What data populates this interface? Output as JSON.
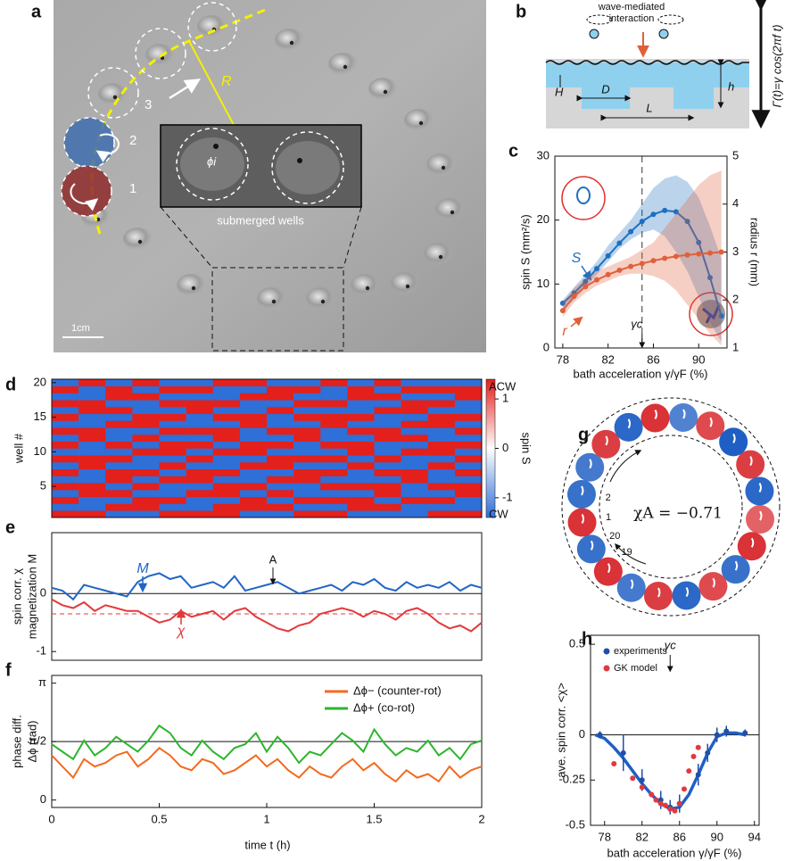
{
  "photo": {
    "label": "a",
    "markers": [
      "1",
      "2",
      "3"
    ],
    "radius": "R",
    "angle": "ϕi",
    "wells": "submerged wells",
    "scale": "1cm"
  },
  "diagram": {
    "label": "b",
    "interaction": [
      "wave-mediated",
      "interaction"
    ],
    "H": "H",
    "D": "D",
    "L": "L",
    "h": "h",
    "forcing": "Γ(t)=γ cos(2πf t)"
  },
  "ring": {
    "label": "g",
    "chi": "χA = −0.71",
    "well_labels": [
      "1",
      "2",
      "20",
      "19"
    ],
    "colors": [
      "#d7262b",
      "#1f5fc4"
    ],
    "spins": [
      0.9,
      -0.8,
      -0.7,
      0.8,
      -0.9,
      0.9,
      -0.6,
      0.7,
      -1,
      0.8,
      -0.9,
      0.5,
      0.9,
      -0.8,
      0.7,
      -0.9,
      0.8,
      -0.7,
      0.9,
      -0.8
    ]
  },
  "chart_data": [
    {
      "type": "line",
      "label": "c",
      "xlabel": "bath acceleration γ/γF (%)",
      "ylabel": "spin S (mm²/s)",
      "y2label": "radius r (mm)",
      "xlim": [
        77.3,
        92.5
      ],
      "xticks": [
        78,
        82,
        86,
        90
      ],
      "ylim": [
        0,
        30
      ],
      "yticks": [
        0,
        10,
        20,
        30
      ],
      "y2lim": [
        1,
        5
      ],
      "y2ticks": [
        1,
        2,
        3,
        4,
        5
      ],
      "gamma_c": {
        "label": "γc",
        "x": 85
      },
      "x": [
        78,
        79,
        80,
        81,
        82,
        83,
        84,
        85,
        86,
        87,
        88,
        89,
        90,
        91,
        92
      ],
      "series": [
        {
          "name": "S",
          "color": "#1f6fc0",
          "markers": true,
          "values": [
            7,
            8.6,
            10.4,
            12.4,
            14.4,
            16.4,
            18.2,
            19.8,
            20.9,
            21.5,
            21.3,
            19.8,
            16.5,
            11,
            5
          ],
          "band_lower": [
            6,
            7.5,
            9.5,
            11.5,
            13.5,
            15.5,
            17,
            18,
            18.5,
            17.5,
            15,
            12,
            8,
            4,
            1
          ],
          "band_upper": [
            7.5,
            9.5,
            11.5,
            13.5,
            16,
            18,
            20,
            22.5,
            25,
            26.5,
            27,
            26,
            23.5,
            19,
            14
          ]
        },
        {
          "name": "r",
          "color": "#e0603a",
          "axis": "y2",
          "markers": true,
          "values": [
            1.78,
            2.08,
            2.28,
            2.42,
            2.53,
            2.62,
            2.7,
            2.76,
            2.82,
            2.87,
            2.91,
            2.94,
            2.96,
            2.98,
            3.0
          ],
          "band_lower": [
            1.65,
            1.95,
            2.15,
            2.3,
            2.4,
            2.5,
            2.55,
            2.55,
            2.5,
            2.4,
            2.2,
            1.9,
            1.6,
            1.3,
            1.05
          ],
          "band_upper": [
            1.95,
            2.25,
            2.45,
            2.6,
            2.7,
            2.8,
            2.9,
            3.05,
            3.2,
            3.5,
            3.8,
            4.1,
            4.4,
            4.6,
            4.7
          ]
        }
      ]
    },
    {
      "type": "heatmap",
      "label": "d",
      "ylabel": "well #",
      "ylim": [
        0.5,
        20.5
      ],
      "yticks": [
        5,
        10,
        15,
        20
      ],
      "colors": [
        "#e3201b",
        "#2f6fd8"
      ],
      "colorbar": {
        "label": "spin S",
        "top": "ACW",
        "bottom": "CW",
        "lim": [
          -1.4,
          1.4
        ],
        "ticks": [
          1,
          0,
          -1
        ]
      },
      "values": [
        [
          1,
          1,
          -1,
          -1,
          1,
          1,
          1,
          -1,
          -1,
          1,
          1,
          -1,
          -1,
          -1,
          1,
          1
        ],
        [
          -1,
          -1,
          1,
          1,
          -1,
          -1,
          1,
          1,
          1,
          -1,
          -1,
          1,
          1,
          -1,
          -1,
          -1
        ],
        [
          1,
          -1,
          -1,
          1,
          1,
          -1,
          -1,
          1,
          -1,
          1,
          1,
          1,
          -1,
          1,
          1,
          -1
        ],
        [
          -1,
          1,
          1,
          -1,
          -1,
          1,
          1,
          -1,
          1,
          -1,
          -1,
          -1,
          1,
          -1,
          -1,
          1
        ],
        [
          1,
          1,
          -1,
          1,
          -1,
          -1,
          1,
          1,
          -1,
          -1,
          1,
          1,
          1,
          -1,
          1,
          1
        ],
        [
          -1,
          -1,
          1,
          -1,
          1,
          1,
          -1,
          -1,
          1,
          1,
          -1,
          -1,
          -1,
          1,
          -1,
          -1
        ],
        [
          1,
          -1,
          1,
          1,
          -1,
          1,
          1,
          -1,
          -1,
          1,
          1,
          -1,
          1,
          1,
          -1,
          1
        ],
        [
          -1,
          1,
          -1,
          -1,
          1,
          -1,
          -1,
          1,
          1,
          -1,
          -1,
          1,
          -1,
          -1,
          1,
          -1
        ],
        [
          1,
          1,
          1,
          -1,
          -1,
          1,
          -1,
          -1,
          1,
          1,
          1,
          -1,
          1,
          -1,
          -1,
          1
        ],
        [
          -1,
          -1,
          -1,
          1,
          1,
          -1,
          1,
          1,
          -1,
          -1,
          -1,
          1,
          -1,
          1,
          1,
          -1
        ],
        [
          1,
          -1,
          1,
          -1,
          1,
          1,
          -1,
          1,
          1,
          -1,
          1,
          1,
          -1,
          -1,
          1,
          1
        ],
        [
          -1,
          1,
          -1,
          1,
          -1,
          -1,
          1,
          -1,
          -1,
          1,
          -1,
          -1,
          1,
          1,
          -1,
          -1
        ],
        [
          1,
          1,
          -1,
          -1,
          1,
          1,
          1,
          -1,
          1,
          1,
          -1,
          1,
          1,
          -1,
          -1,
          1
        ],
        [
          -1,
          -1,
          1,
          1,
          -1,
          -1,
          -1,
          1,
          -1,
          -1,
          1,
          -1,
          -1,
          1,
          1,
          -1
        ],
        [
          1,
          -1,
          -1,
          1,
          1,
          -1,
          1,
          1,
          -1,
          1,
          1,
          1,
          -1,
          -1,
          1,
          1
        ],
        [
          -1,
          1,
          1,
          -1,
          -1,
          1,
          -1,
          -1,
          1,
          -1,
          -1,
          -1,
          1,
          1,
          -1,
          -1
        ],
        [
          1,
          1,
          -1,
          -1,
          1,
          1,
          1,
          -1,
          -1,
          1,
          1,
          -1,
          -1,
          1,
          1,
          -1
        ],
        [
          -1,
          -1,
          1,
          1,
          -1,
          -1,
          -1,
          1,
          1,
          -1,
          -1,
          1,
          1,
          -1,
          -1,
          1
        ],
        [
          1,
          -1,
          1,
          -1,
          1,
          1,
          -1,
          -1,
          1,
          1,
          -1,
          1,
          -1,
          1,
          1,
          1
        ],
        [
          -1,
          1,
          -1,
          1,
          -1,
          -1,
          1,
          1,
          -1,
          -1,
          1,
          -1,
          1,
          -1,
          -1,
          -1
        ]
      ]
    },
    {
      "type": "line",
      "label": "e",
      "ylabel": [
        "spin corr. χ",
        "magnetization M"
      ],
      "xlim": [
        0,
        2
      ],
      "ylim": [
        -1.15,
        1.05
      ],
      "yticks": [
        -1,
        0
      ],
      "hline": 0,
      "mean": {
        "value": -0.35,
        "color": "#e3393b"
      },
      "x": [
        0,
        0.05,
        0.1,
        0.15,
        0.2,
        0.25,
        0.3,
        0.35,
        0.4,
        0.45,
        0.5,
        0.55,
        0.6,
        0.65,
        0.7,
        0.75,
        0.8,
        0.85,
        0.9,
        0.95,
        1,
        1.05,
        1.1,
        1.15,
        1.2,
        1.25,
        1.3,
        1.35,
        1.4,
        1.45,
        1.5,
        1.55,
        1.6,
        1.65,
        1.7,
        1.75,
        1.8,
        1.85,
        1.9,
        1.95,
        2
      ],
      "annotation": "A",
      "series": [
        {
          "name": "M",
          "color": "#2166c4",
          "values": [
            0.1,
            0.05,
            -0.1,
            0.15,
            0.1,
            0.05,
            0.0,
            -0.05,
            0.2,
            0.3,
            0.35,
            0.25,
            0.3,
            0.1,
            0.15,
            0.2,
            0.1,
            0.3,
            0.05,
            0.1,
            0.15,
            0.2,
            0.1,
            0.0,
            0.05,
            0.1,
            0.15,
            0.05,
            0.2,
            0.15,
            0.25,
            0.1,
            0.05,
            0.2,
            0.1,
            0.15,
            0.1,
            0.2,
            0.05,
            0.15,
            0.1
          ]
        },
        {
          "name": "χ",
          "color": "#e3393b",
          "values": [
            -0.1,
            -0.2,
            -0.25,
            -0.15,
            -0.3,
            -0.2,
            -0.25,
            -0.3,
            -0.3,
            -0.4,
            -0.5,
            -0.45,
            -0.3,
            -0.4,
            -0.35,
            -0.3,
            -0.45,
            -0.3,
            -0.25,
            -0.4,
            -0.5,
            -0.6,
            -0.65,
            -0.55,
            -0.5,
            -0.35,
            -0.3,
            -0.25,
            -0.3,
            -0.4,
            -0.3,
            -0.35,
            -0.45,
            -0.3,
            -0.25,
            -0.35,
            -0.5,
            -0.6,
            -0.55,
            -0.65,
            -0.5
          ]
        }
      ]
    },
    {
      "type": "line",
      "label": "f",
      "xlabel": "time t (h)",
      "ylabel": [
        "phase diff.",
        "Δϕ (rad)"
      ],
      "xlim": [
        0,
        2
      ],
      "xticks": [
        0,
        0.5,
        1,
        1.5,
        2
      ],
      "ylim": [
        -0.2,
        3.35
      ],
      "yticks": [
        0,
        {
          "value": 1.5708,
          "label": "π/2"
        },
        {
          "value": 3.1416,
          "label": "π"
        }
      ],
      "hline": 1.5708,
      "legend": "upper right",
      "x": [
        0,
        0.05,
        0.1,
        0.15,
        0.2,
        0.25,
        0.3,
        0.35,
        0.4,
        0.45,
        0.5,
        0.55,
        0.6,
        0.65,
        0.7,
        0.75,
        0.8,
        0.85,
        0.9,
        0.95,
        1,
        1.05,
        1.1,
        1.15,
        1.2,
        1.25,
        1.3,
        1.35,
        1.4,
        1.45,
        1.5,
        1.55,
        1.6,
        1.65,
        1.7,
        1.75,
        1.8,
        1.85,
        1.9,
        1.95,
        2
      ],
      "series": [
        {
          "name": "Δϕ− (counter-rot)",
          "color": "#f26b1d",
          "values": [
            1.2,
            0.9,
            0.6,
            1.1,
            0.9,
            1.0,
            1.2,
            1.3,
            0.9,
            1.1,
            1.4,
            1.2,
            0.9,
            0.8,
            1.1,
            1.0,
            0.7,
            0.8,
            1.0,
            1.2,
            0.9,
            1.1,
            0.8,
            0.6,
            0.9,
            0.7,
            0.6,
            0.9,
            1.1,
            0.8,
            1.0,
            0.7,
            0.5,
            0.8,
            0.6,
            0.7,
            0.5,
            0.9,
            0.6,
            0.8,
            0.9
          ]
        },
        {
          "name": "Δϕ+ (co-rot)",
          "color": "#2db52d",
          "values": [
            1.5,
            1.3,
            1.1,
            1.6,
            1.2,
            1.4,
            1.7,
            1.5,
            1.3,
            1.6,
            2.0,
            1.8,
            1.4,
            1.2,
            1.6,
            1.3,
            1.1,
            1.4,
            1.5,
            1.8,
            1.3,
            1.7,
            1.4,
            1.0,
            1.3,
            1.2,
            1.5,
            1.8,
            1.6,
            1.3,
            1.9,
            1.5,
            1.2,
            1.4,
            1.3,
            1.6,
            1.2,
            1.4,
            1.1,
            1.5,
            1.6
          ]
        }
      ]
    },
    {
      "type": "scatter",
      "label": "h",
      "xlabel": "bath acceleration γ/γF (%)",
      "ylabel": "ave. spin corr. <χ>",
      "xlim": [
        76.5,
        94.5
      ],
      "xticks": [
        78,
        82,
        86,
        90,
        94
      ],
      "ylim": [
        -0.5,
        0.55
      ],
      "yticks": [
        0.5,
        0,
        -0.25,
        -0.5
      ],
      "hline": 0,
      "legend": "upper left",
      "gamma_c": {
        "label": "γc",
        "x": 85
      },
      "series": [
        {
          "color": "#1f5fc4",
          "style": "line",
          "x": [
            77,
            78,
            79,
            80,
            81,
            82,
            83,
            84,
            85,
            86,
            87,
            88,
            89,
            90,
            91,
            92,
            93
          ],
          "values": [
            0,
            -0.02,
            -0.07,
            -0.13,
            -0.2,
            -0.27,
            -0.33,
            -0.38,
            -0.41,
            -0.4,
            -0.33,
            -0.22,
            -0.1,
            -0.01,
            0.01,
            0.01,
            0
          ]
        },
        {
          "name": "experiments",
          "color": "#1f4fa8",
          "style": "points",
          "x": [
            77.5,
            80,
            82,
            84,
            85,
            86,
            88,
            89,
            90,
            91,
            93
          ],
          "values": [
            0,
            -0.1,
            -0.25,
            -0.36,
            -0.4,
            -0.38,
            -0.22,
            -0.1,
            0,
            0.02,
            0.01
          ],
          "errors": [
            0.02,
            0.1,
            0.06,
            0.05,
            0.04,
            0.05,
            0.06,
            0.05,
            0.04,
            0.03,
            0.02
          ]
        },
        {
          "name": "GK model",
          "color": "#e0393e",
          "style": "points",
          "x": [
            79,
            81,
            82,
            83,
            83.5,
            84,
            84.5,
            85,
            85.5,
            86,
            86.5,
            87,
            87.5,
            88
          ],
          "values": [
            -0.16,
            -0.24,
            -0.29,
            -0.33,
            -0.36,
            -0.38,
            -0.39,
            -0.41,
            -0.42,
            -0.38,
            -0.3,
            -0.2,
            -0.12,
            -0.07
          ]
        }
      ]
    }
  ]
}
